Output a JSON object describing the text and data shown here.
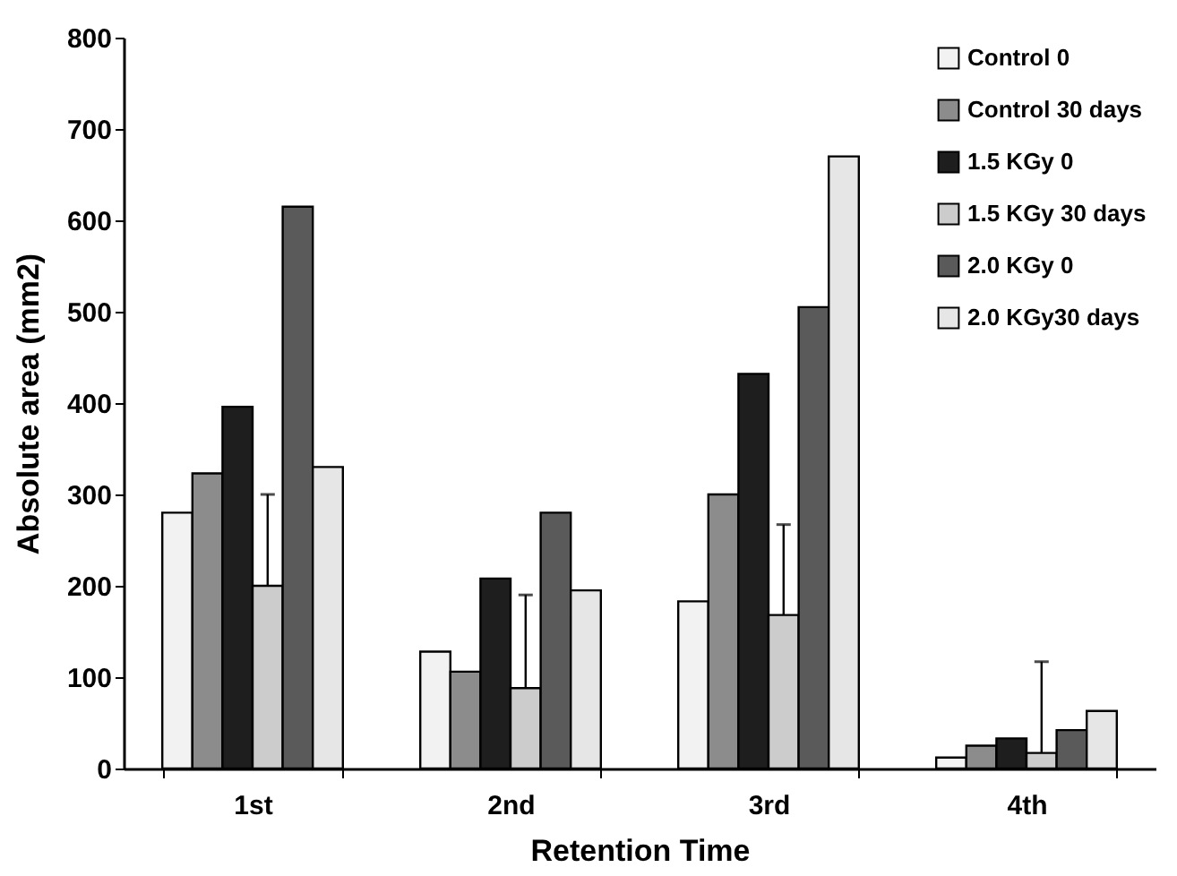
{
  "chart_data": {
    "type": "bar",
    "xlabel": "Retention Time",
    "ylabel": "Absolute area (mm2)",
    "categories": [
      "1st",
      "2nd",
      "3rd",
      "4th"
    ],
    "series": [
      {
        "name": "Control 0",
        "color": "#f2f2f2",
        "values": [
          280,
          128,
          183,
          12
        ]
      },
      {
        "name": "Control 30 days",
        "color": "#8c8c8c",
        "values": [
          323,
          106,
          300,
          25
        ]
      },
      {
        "name": "1.5 KGy 0",
        "color": "#1e1e1e",
        "values": [
          396,
          208,
          432,
          33
        ]
      },
      {
        "name": "1.5 KGy 30 days",
        "color": "#cccccc",
        "values": [
          200,
          88,
          168,
          17
        ],
        "errors": [
          [
            200,
            300
          ],
          [
            88,
            190
          ],
          [
            168,
            267
          ],
          [
            17,
            117
          ]
        ]
      },
      {
        "name": "2.0  KGy 0",
        "color": "#5a5a5a",
        "values": [
          615,
          280,
          505,
          42
        ]
      },
      {
        "name": "2.0  KGy30 days",
        "color": "#e6e6e6",
        "values": [
          330,
          195,
          670,
          63
        ]
      }
    ],
    "ylim": [
      0,
      800
    ],
    "yticks": [
      0,
      100,
      200,
      300,
      400,
      500,
      600,
      700,
      800
    ],
    "grid": false,
    "legend": "top right"
  }
}
